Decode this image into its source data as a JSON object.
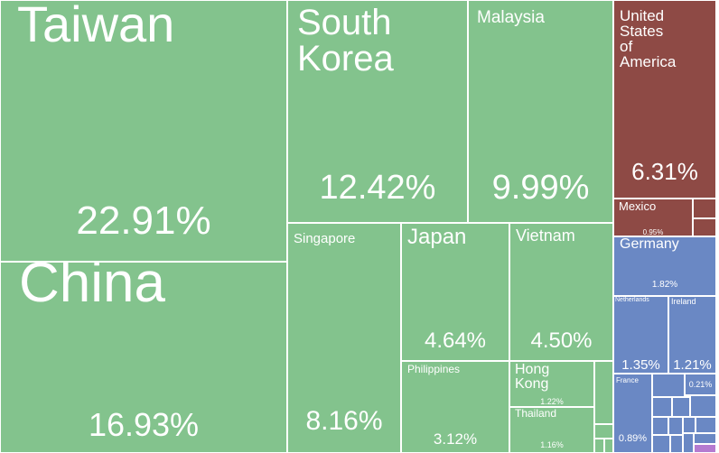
{
  "chart_data": {
    "type": "treemap",
    "colors": {
      "asia": "#83c38d",
      "north_america": "#8e4a45",
      "europe": "#6a88c4",
      "other": "#b57bd0"
    },
    "items": [
      {
        "name": "Taiwan",
        "value": 22.91,
        "value_label": "22.91%",
        "region": "asia"
      },
      {
        "name": "China",
        "value": 16.93,
        "value_label": "16.93%",
        "region": "asia"
      },
      {
        "name": "South\nKorea",
        "value": 12.42,
        "value_label": "12.42%",
        "region": "asia"
      },
      {
        "name": "Malaysia",
        "value": 9.99,
        "value_label": "9.99%",
        "region": "asia"
      },
      {
        "name": "Singapore",
        "value": 8.16,
        "value_label": "8.16%",
        "region": "asia"
      },
      {
        "name": "Japan",
        "value": 4.64,
        "value_label": "4.64%",
        "region": "asia"
      },
      {
        "name": "Vietnam",
        "value": 4.5,
        "value_label": "4.50%",
        "region": "asia"
      },
      {
        "name": "Philippines",
        "value": 3.12,
        "value_label": "3.12%",
        "region": "asia"
      },
      {
        "name": "Hong\nKong",
        "value": 1.22,
        "value_label": "1.22%",
        "region": "asia"
      },
      {
        "name": "Thailand",
        "value": 1.16,
        "value_label": "1.16%",
        "region": "asia"
      },
      {
        "name": "United\nStates\nof\nAmerica",
        "value": 6.31,
        "value_label": "6.31%",
        "region": "north_america"
      },
      {
        "name": "Mexico",
        "value": 0.95,
        "value_label": "0.95%",
        "region": "north_america"
      },
      {
        "name": "Germany",
        "value": 1.82,
        "value_label": "1.82%",
        "region": "europe"
      },
      {
        "name": "Netherlands",
        "value": 1.35,
        "value_label": "1.35%",
        "region": "europe"
      },
      {
        "name": "Ireland",
        "value": 1.21,
        "value_label": "1.21%",
        "region": "europe"
      },
      {
        "name": "France",
        "value": 0.89,
        "value_label": "0.89%",
        "region": "europe"
      },
      {
        "name": "",
        "value": 0.21,
        "value_label": "0.21%",
        "region": "europe"
      }
    ]
  }
}
